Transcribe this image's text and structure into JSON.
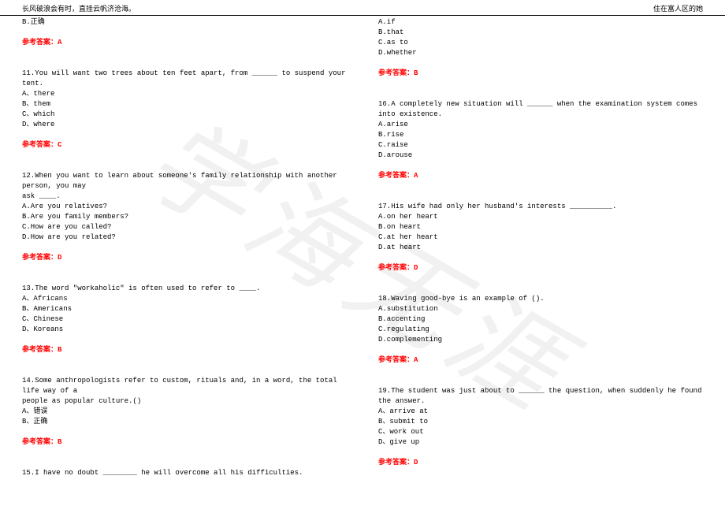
{
  "header": {
    "left": "长风破浪会有时，直挂云帆济沧海。",
    "right": "住在富人区的她"
  },
  "watermark": "学海无涯",
  "left": {
    "b_option": "B.正确",
    "ans_a": "参考答案：A",
    "q11": {
      "stem": "11.You will want two trees about ten feet apart, from ______ to suspend your tent.",
      "a": "A、there",
      "b": "B、them",
      "c": "C、which",
      "d": "D、where",
      "ans": "参考答案：C"
    },
    "q12": {
      "stem1": "12.When you want to learn about someone's family relationship with another person, you may",
      "stem2": "ask ____.",
      "a": "A.Are you relatives?",
      "b": "B.Are you family members?",
      "c": "C.How are you called?",
      "d": "D.How are you related?",
      "ans": "参考答案：D"
    },
    "q13": {
      "stem": "13.The word \"workaholic\" is often used to refer to ____.",
      "a": "A、Africans",
      "b": "B、Americans",
      "c": "C、Chinese",
      "d": "D、Koreans",
      "ans": "参考答案：B"
    },
    "q14": {
      "stem1": "14.Some anthropologists refer to custom, rituals and, in a word, the total life way of a",
      "stem2": "people as popular culture.()",
      "a": "A、错误",
      "b": "B、正确",
      "ans": "参考答案：B"
    },
    "q15": {
      "stem": "15.I have no doubt ________ he will overcome all his difficulties."
    }
  },
  "right": {
    "q15opts": {
      "a": "A.if",
      "b": "B.that",
      "c": "C.as to",
      "d": "D.whether",
      "ans": "参考答案：B"
    },
    "q16": {
      "stem": "16.A completely new situation will ______ when the examination system comes into existence.",
      "a": "A.arise",
      "b": "B.rise",
      "c": "C.raise",
      "d": "D.arouse",
      "ans": "参考答案：A"
    },
    "q17": {
      "stem": "17.His wife had only her husband's interests __________.",
      "a": "A.on her heart",
      "b": "B.on heart",
      "c": "C.at her heart",
      "d": "D.at heart",
      "ans": "参考答案：D"
    },
    "q18": {
      "stem": "18.Waving good-bye is an example of ().",
      "a": "A.substitution",
      "b": "B.accenting",
      "c": "C.regulating",
      "d": "D.complementing",
      "ans": "参考答案：A"
    },
    "q19": {
      "stem": "19.The student was just about to ______ the question, when suddenly he found the answer.",
      "a": "A、arrive at",
      "b": "B、submit to",
      "c": "C、work out",
      "d": "D、give up",
      "ans": "参考答案：D"
    }
  }
}
